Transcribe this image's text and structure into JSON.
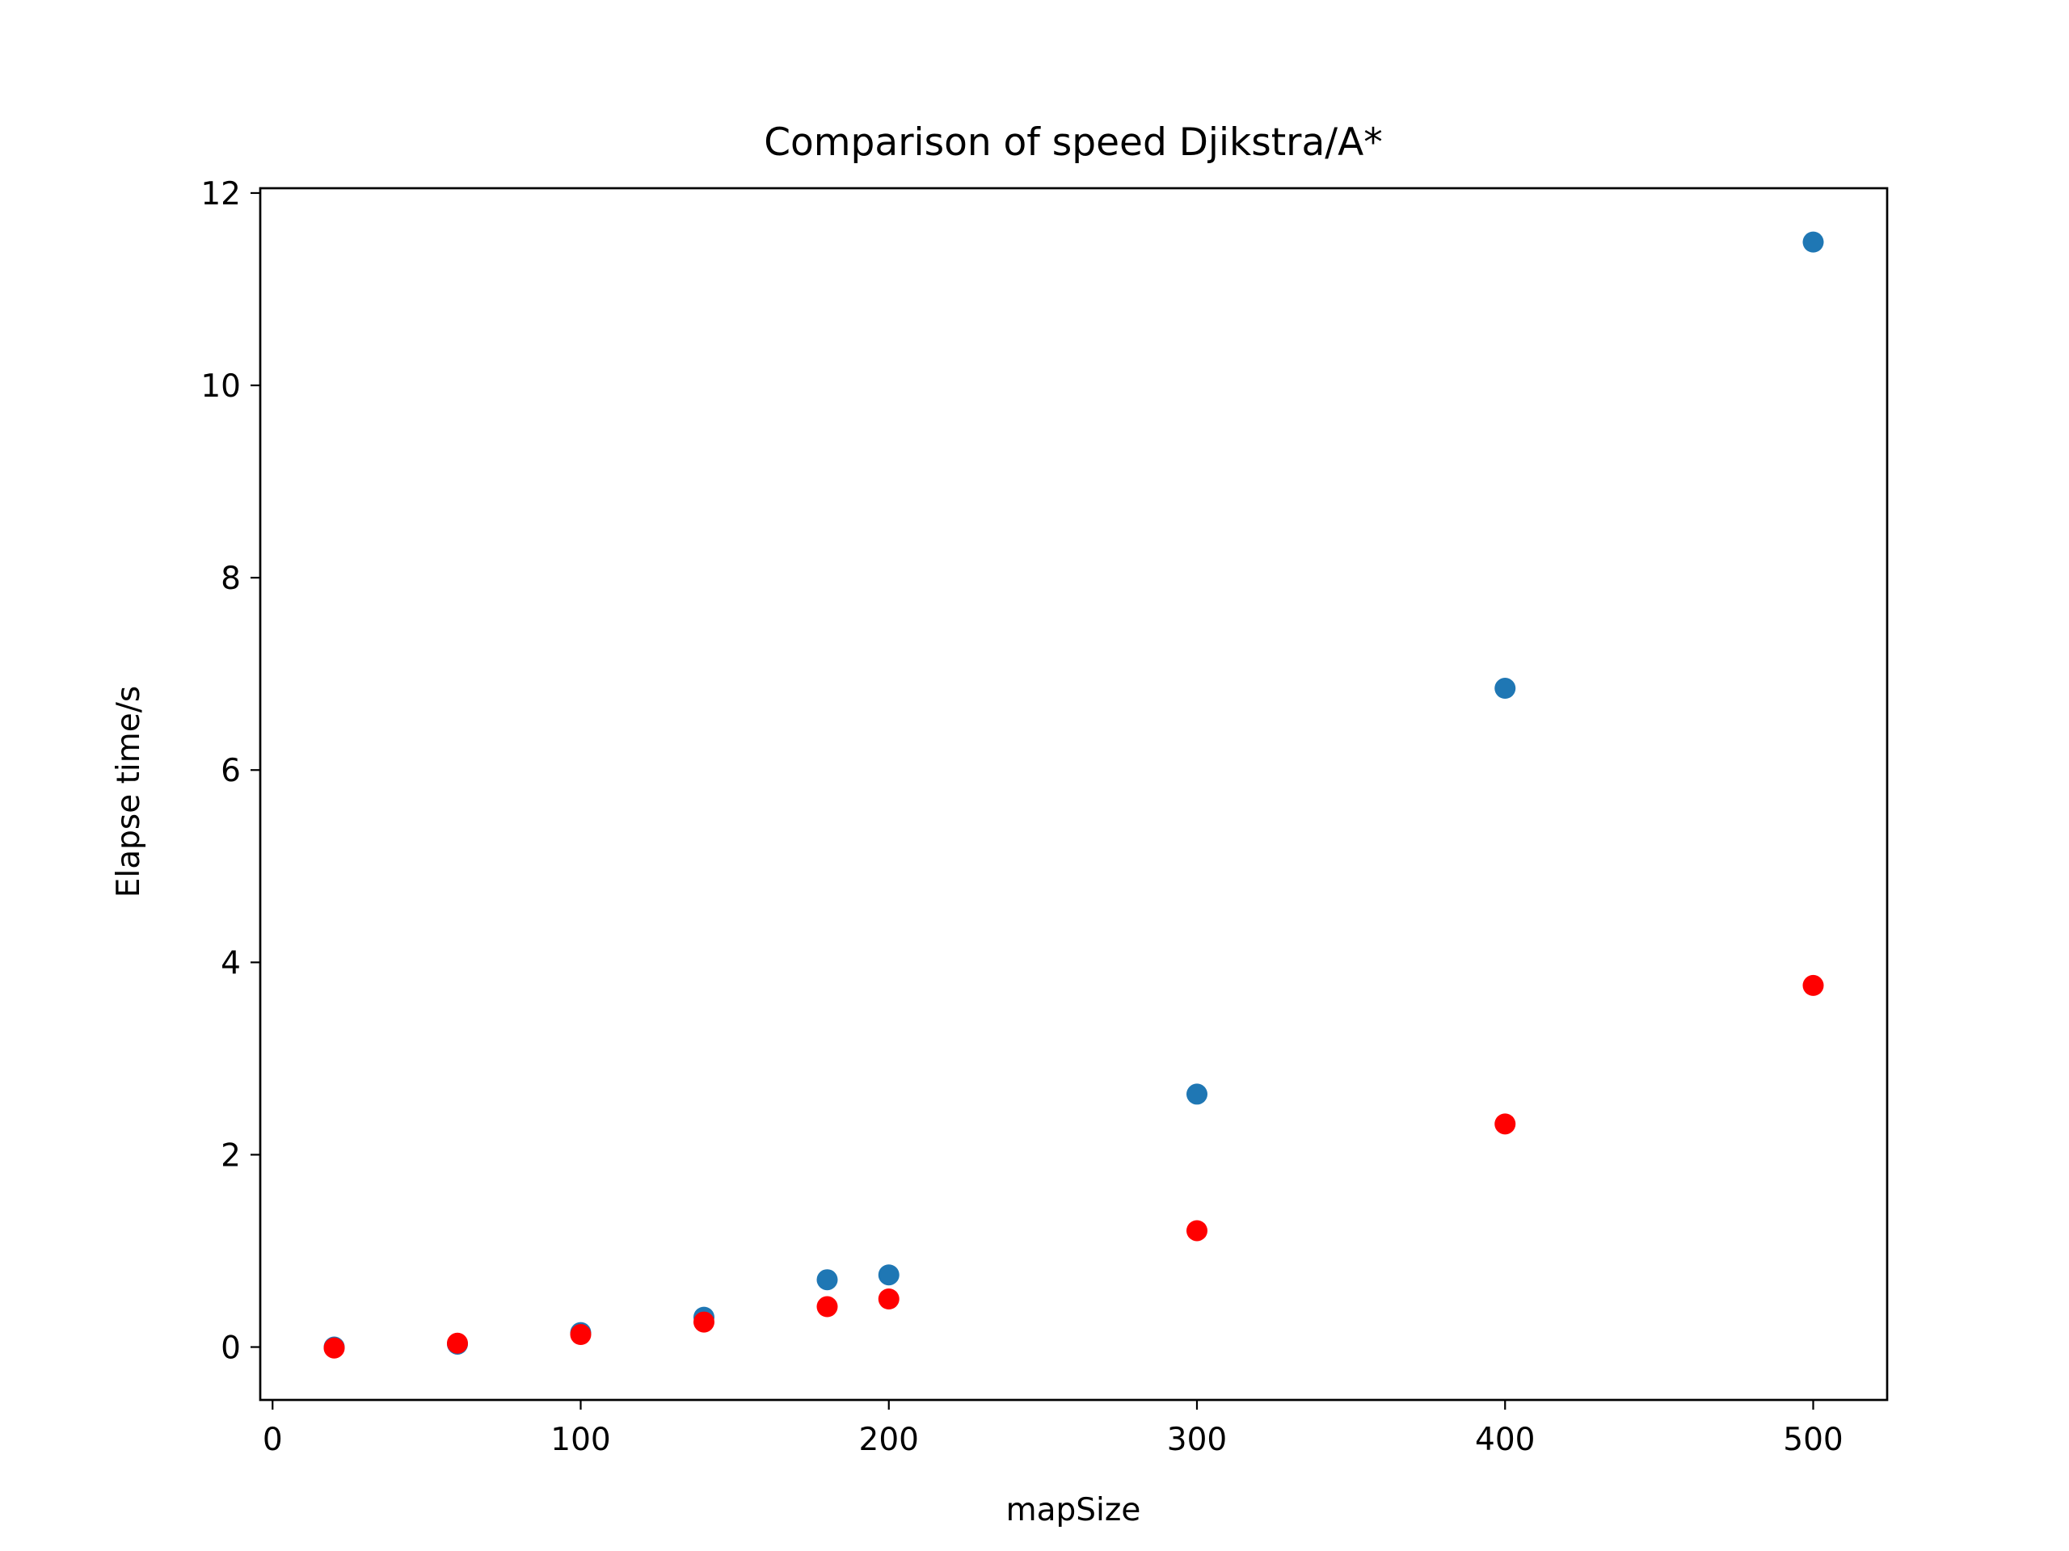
{
  "chart_data": {
    "type": "scatter",
    "title": "Comparison of speed Djikstra/A*",
    "xlabel": "mapSize",
    "ylabel": "Elapse time/s",
    "xlim": [
      -4,
      524
    ],
    "ylim": [
      -0.55,
      12.05
    ],
    "xticks": [
      0,
      100,
      200,
      300,
      400,
      500
    ],
    "yticks": [
      0,
      2,
      4,
      6,
      8,
      10,
      12
    ],
    "grid": false,
    "series": [
      {
        "color": "#1f77b4",
        "x": [
          20,
          60,
          100,
          140,
          180,
          200,
          300,
          400,
          500
        ],
        "y": [
          0.0,
          0.03,
          0.15,
          0.31,
          0.7,
          0.75,
          2.63,
          6.85,
          11.49
        ]
      },
      {
        "color": "#ff0000",
        "x": [
          20,
          60,
          100,
          140,
          180,
          200,
          300,
          400,
          500
        ],
        "y": [
          -0.01,
          0.04,
          0.13,
          0.26,
          0.42,
          0.5,
          1.21,
          2.32,
          3.76
        ]
      }
    ]
  }
}
